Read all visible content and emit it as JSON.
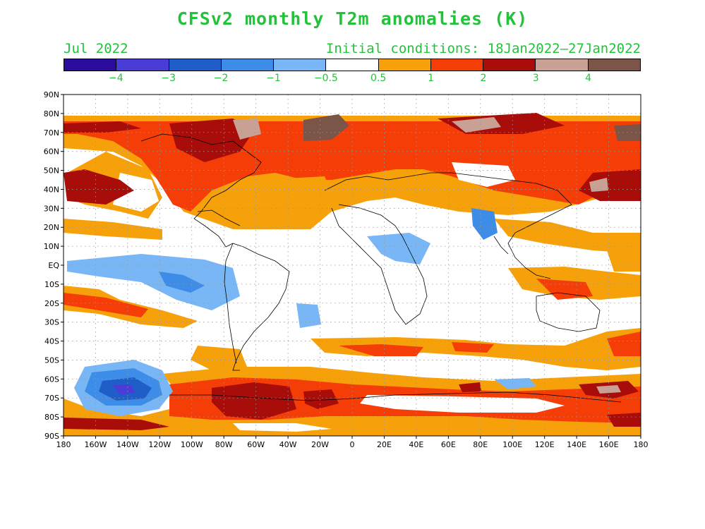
{
  "title": "CFSv2 monthly T2m anomalies (K)",
  "month": "Jul 2022",
  "initial_conditions": "Initial conditions: 18Jan2022–27Jan2022",
  "colorbar": {
    "colors": [
      "#2b0d9e",
      "#4a3cd6",
      "#1f5ec9",
      "#3d8de8",
      "#78b6f5",
      "#ffffff",
      "#f7a10a",
      "#f53d08",
      "#a80d0a",
      "#c8a094",
      "#7a5548"
    ],
    "labels": [
      "−4",
      "−3",
      "−2",
      "−1",
      "−0.5",
      "0.5",
      "1",
      "2",
      "3",
      "4"
    ]
  },
  "map": {
    "lat_labels": [
      "90N",
      "80N",
      "70N",
      "60N",
      "50N",
      "40N",
      "30N",
      "20N",
      "10N",
      "EQ",
      "10S",
      "20S",
      "30S",
      "40S",
      "50S",
      "60S",
      "70S",
      "80S",
      "90S"
    ],
    "lon_labels": [
      "180",
      "160W",
      "140W",
      "120W",
      "100W",
      "80W",
      "60W",
      "40W",
      "20W",
      "0",
      "20E",
      "40E",
      "60E",
      "80E",
      "100E",
      "120E",
      "140E",
      "160E",
      "180"
    ]
  }
}
